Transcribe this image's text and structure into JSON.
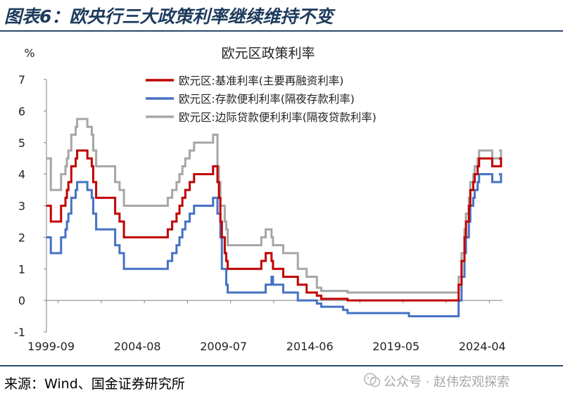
{
  "header": {
    "title": "图表6：欧央行三大政策利率继续维持不变"
  },
  "chart_data": {
    "type": "line",
    "title": "欧元区政策利率",
    "ylabel": "%",
    "ylim": [
      -1,
      7
    ],
    "yticks": [
      -1,
      0,
      1,
      2,
      3,
      4,
      5,
      6,
      7
    ],
    "xlim": [
      "1999-01",
      "2025-01"
    ],
    "xticks": [
      "1999-09",
      "2004-08",
      "2009-07",
      "2014-06",
      "2019-05",
      "2024-04"
    ],
    "grid": false,
    "legend_position": "top-center",
    "colors": [
      "#c00000",
      "#4472c4",
      "#a6a6a6"
    ],
    "series": [
      {
        "name": "欧元区:基准利率(主要再融资利率)",
        "color": "#c00000",
        "x": [
          "1999-01",
          "1999-04",
          "1999-11",
          "2000-02",
          "2000-03",
          "2000-04",
          "2000-06",
          "2000-09",
          "2000-10",
          "2001-05",
          "2001-08",
          "2001-09",
          "2001-11",
          "2002-12",
          "2003-03",
          "2003-06",
          "2005-12",
          "2006-03",
          "2006-06",
          "2006-08",
          "2006-10",
          "2006-12",
          "2007-03",
          "2007-06",
          "2008-07",
          "2008-10",
          "2008-11",
          "2008-12",
          "2009-01",
          "2009-03",
          "2009-04",
          "2009-05",
          "2011-04",
          "2011-07",
          "2011-11",
          "2011-12",
          "2012-07",
          "2013-05",
          "2013-11",
          "2014-06",
          "2014-09",
          "2015-12",
          "2016-03",
          "2022-07",
          "2022-09",
          "2022-11",
          "2022-12",
          "2023-02",
          "2023-03",
          "2023-05",
          "2023-06",
          "2023-08",
          "2023-09",
          "2024-06",
          "2024-12"
        ],
        "y": [
          3.0,
          2.5,
          3.0,
          3.25,
          3.5,
          3.75,
          4.25,
          4.5,
          4.75,
          4.5,
          4.25,
          3.75,
          3.25,
          2.75,
          2.5,
          2.0,
          2.25,
          2.5,
          2.75,
          3.0,
          3.25,
          3.5,
          3.75,
          4.0,
          4.25,
          3.75,
          3.25,
          2.5,
          2.0,
          1.5,
          1.25,
          1.0,
          1.25,
          1.5,
          1.25,
          1.0,
          0.75,
          0.5,
          0.25,
          0.15,
          0.05,
          0.05,
          0.0,
          0.5,
          1.25,
          2.0,
          2.5,
          3.0,
          3.5,
          3.75,
          4.0,
          4.25,
          4.5,
          4.25,
          4.5
        ]
      },
      {
        "name": "欧元区:存款便利利率(隔夜存款利率)",
        "color": "#4472c4",
        "x": [
          "1999-01",
          "1999-04",
          "1999-11",
          "2000-02",
          "2000-03",
          "2000-04",
          "2000-06",
          "2000-09",
          "2000-10",
          "2001-05",
          "2001-08",
          "2001-09",
          "2001-11",
          "2002-12",
          "2003-03",
          "2003-06",
          "2005-12",
          "2006-03",
          "2006-06",
          "2006-08",
          "2006-10",
          "2006-12",
          "2007-03",
          "2007-06",
          "2008-07",
          "2008-10",
          "2008-11",
          "2008-12",
          "2009-01",
          "2009-03",
          "2009-04",
          "2009-05",
          "2011-04",
          "2011-07",
          "2011-11",
          "2011-12",
          "2012-07",
          "2013-05",
          "2013-11",
          "2014-06",
          "2014-09",
          "2015-12",
          "2016-03",
          "2019-09",
          "2022-07",
          "2022-09",
          "2022-11",
          "2022-12",
          "2023-02",
          "2023-03",
          "2023-05",
          "2023-06",
          "2023-08",
          "2023-09",
          "2024-06",
          "2024-12"
        ],
        "y": [
          2.0,
          1.5,
          2.0,
          2.25,
          2.5,
          2.75,
          3.25,
          3.5,
          3.75,
          3.5,
          3.25,
          2.75,
          2.25,
          1.75,
          1.5,
          1.0,
          1.25,
          1.5,
          1.75,
          2.0,
          2.25,
          2.5,
          2.75,
          3.0,
          3.25,
          2.75,
          2.75,
          2.0,
          1.0,
          1.0,
          0.5,
          0.25,
          0.25,
          0.5,
          0.75,
          0.5,
          0.25,
          0.0,
          0.0,
          -0.1,
          -0.2,
          -0.3,
          -0.4,
          -0.5,
          0.0,
          0.75,
          1.5,
          2.0,
          2.5,
          3.0,
          3.25,
          3.5,
          3.75,
          4.0,
          3.75,
          4.0
        ]
      },
      {
        "name": "欧元区:边际贷款便利利率(隔夜贷款利率)",
        "color": "#a6a6a6",
        "x": [
          "1999-01",
          "1999-04",
          "1999-11",
          "2000-02",
          "2000-03",
          "2000-04",
          "2000-06",
          "2000-09",
          "2000-10",
          "2001-05",
          "2001-08",
          "2001-09",
          "2001-11",
          "2002-12",
          "2003-03",
          "2003-06",
          "2005-12",
          "2006-03",
          "2006-06",
          "2006-08",
          "2006-10",
          "2006-12",
          "2007-03",
          "2007-06",
          "2008-07",
          "2008-10",
          "2008-11",
          "2008-12",
          "2009-01",
          "2009-03",
          "2009-04",
          "2009-05",
          "2011-04",
          "2011-07",
          "2011-11",
          "2011-12",
          "2012-07",
          "2013-05",
          "2013-11",
          "2014-06",
          "2014-09",
          "2015-12",
          "2016-03",
          "2022-07",
          "2022-09",
          "2022-11",
          "2022-12",
          "2023-02",
          "2023-03",
          "2023-05",
          "2023-06",
          "2023-08",
          "2023-09",
          "2024-06",
          "2024-12"
        ],
        "y": [
          4.5,
          3.5,
          4.0,
          4.25,
          4.5,
          4.75,
          5.25,
          5.5,
          5.75,
          5.5,
          5.25,
          4.75,
          4.25,
          3.75,
          3.5,
          3.0,
          3.25,
          3.5,
          3.75,
          4.0,
          4.25,
          4.5,
          4.75,
          5.0,
          5.25,
          4.25,
          3.75,
          3.0,
          3.0,
          2.5,
          2.25,
          1.75,
          2.0,
          2.25,
          2.0,
          1.75,
          1.5,
          1.0,
          0.75,
          0.4,
          0.3,
          0.3,
          0.25,
          0.75,
          1.5,
          2.25,
          2.75,
          3.25,
          3.75,
          4.0,
          4.25,
          4.5,
          4.75,
          4.5,
          4.75
        ]
      }
    ]
  },
  "footer": {
    "source": "来源：Wind、国金证券研究所",
    "watermark": "公众号 · 赵伟宏观探索"
  }
}
